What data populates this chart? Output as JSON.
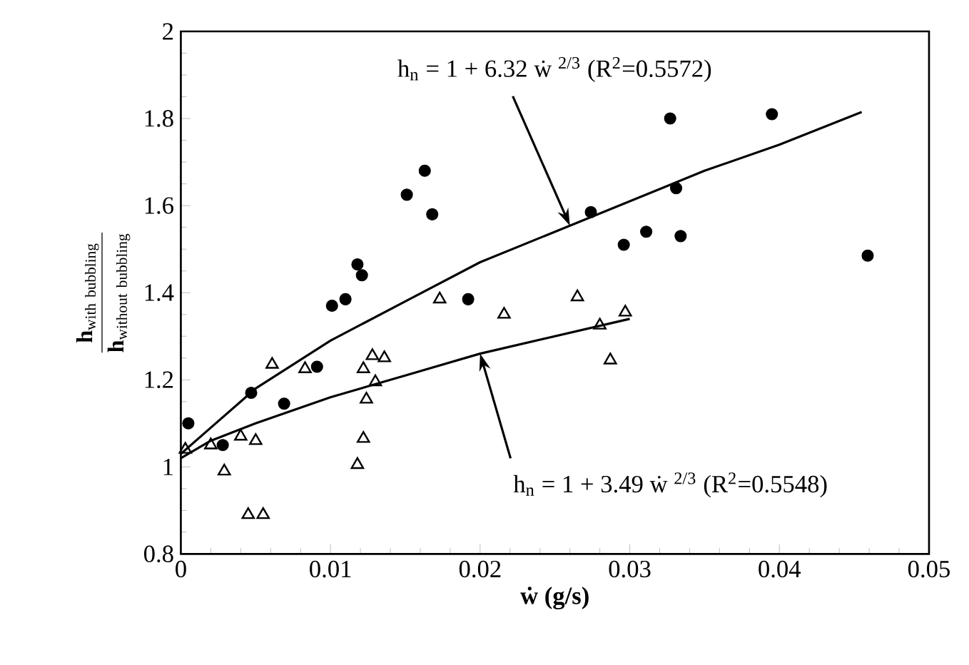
{
  "chart_data": {
    "type": "scatter",
    "xlabel": "**ẇ (g/s)**",
    "ylabel": "\\dfrac{\\mathbf{h}_{\\mathrm{with\\ bubbling}}}{\\mathbf{h}_{\\mathrm{without\\ bubbling}}}",
    "xlim": [
      0,
      0.05
    ],
    "ylim": [
      0.8,
      2
    ],
    "xticks": [
      0,
      0.01,
      0.02,
      0.03,
      0.04,
      0.05
    ],
    "yticks": [
      0.8,
      1,
      1.2,
      1.4,
      1.6,
      1.8,
      2
    ],
    "series": [
      {
        "marker": "circle",
        "color": "#000000",
        "x": [
          0.0005,
          0.0028,
          0.0047,
          0.0069,
          0.0091,
          0.0101,
          0.011,
          0.0118,
          0.0121,
          0.0151,
          0.0163,
          0.0168,
          0.0192,
          0.0274,
          0.0327,
          0.0395,
          0.0331,
          0.0296,
          0.0311,
          0.0334,
          0.0459
        ],
        "values": [
          1.1,
          1.05,
          1.17,
          1.145,
          1.23,
          1.37,
          1.385,
          1.465,
          1.44,
          1.625,
          1.68,
          1.58,
          1.385,
          1.585,
          1.8,
          1.81,
          1.64,
          1.51,
          1.54,
          1.53,
          1.485
        ]
      },
      {
        "marker": "triangle",
        "color": "#000000",
        "x": [
          0.0003,
          0.002,
          0.0024,
          0.0029,
          0.004,
          0.005,
          0.0045,
          0.0055,
          0.0061,
          0.0083,
          0.0122,
          0.0118,
          0.0122,
          0.0124,
          0.0128,
          0.0136,
          0.013,
          0.0173,
          0.0216,
          0.0265,
          0.028,
          0.0297,
          0.0287
        ],
        "values": [
          1.04,
          1.05,
          null,
          0.99,
          1.07,
          1.06,
          0.89,
          0.89,
          1.235,
          1.225,
          1.225,
          1.005,
          1.065,
          1.155,
          1.255,
          1.25,
          1.195,
          1.385,
          1.35,
          1.39,
          1.325,
          1.355,
          1.245
        ]
      },
      {
        "type": "line",
        "marker": "none",
        "color": "#000000",
        "x": [
          0,
          0.002,
          0.005,
          0.01,
          0.015,
          0.02,
          0.025,
          0.03,
          0.035,
          0.04,
          0.0455
        ],
        "values": [
          1.03,
          1.09,
          1.18,
          1.29,
          1.38,
          1.47,
          1.54,
          1.61,
          1.68,
          1.74,
          1.815
        ]
      },
      {
        "type": "line",
        "marker": "none",
        "color": "#000000",
        "x": [
          0,
          0.002,
          0.005,
          0.01,
          0.015,
          0.02,
          0.025,
          0.03
        ],
        "values": [
          1.02,
          1.06,
          1.1,
          1.16,
          1.21,
          1.26,
          1.3,
          1.34
        ]
      }
    ],
    "annotations": [
      {
        "text": "h$_{n}$ = 1 + 6.32 ẇ $^{2/3}$  (R$^{2}$=0.5572)",
        "x": 0.026,
        "y": 1.554
      },
      {
        "text": "h$_{n}$ = 1 + 3.49 ẇ $^{2/3}$  (R$^{2}$=0.5548)",
        "x": 0.02,
        "y": 1.26
      }
    ]
  }
}
